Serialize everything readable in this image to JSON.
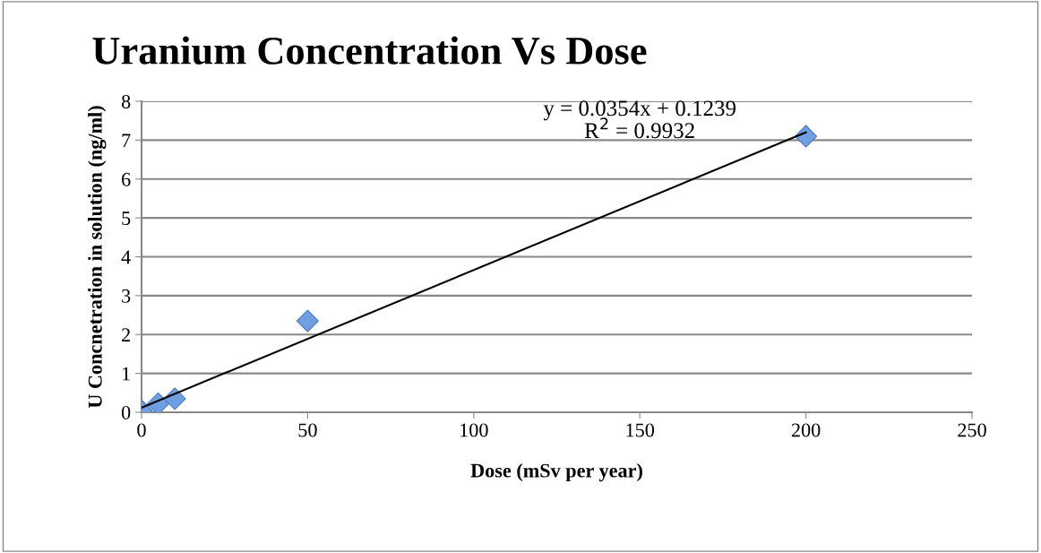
{
  "chart_data": {
    "type": "scatter",
    "title": "Uranium Concentration Vs Dose",
    "xlabel": "Dose (mSv per year)",
    "ylabel": "U Concnetration in solution (ng/ml)",
    "xlim": [
      0,
      250
    ],
    "xticks": [
      0,
      50,
      100,
      150,
      200,
      250
    ],
    "ylim": [
      0,
      8
    ],
    "yticks": [
      0,
      1,
      2,
      3,
      4,
      5,
      6,
      7,
      8
    ],
    "grid": "y",
    "legend": false,
    "series": [
      {
        "color": "#6f9fe0",
        "marker": "diamond",
        "x": [
          0,
          5,
          10,
          50,
          200
        ],
        "values": [
          0.04,
          0.22,
          0.35,
          2.35,
          7.1
        ]
      },
      {
        "type": "line",
        "color": "#000000",
        "marker": "none",
        "line_style": "solid",
        "x": [
          0,
          200
        ],
        "values": [
          0.12,
          7.2
        ]
      }
    ],
    "annotations": [
      "y = 0.0354x + 0.1239\nR$^{2}$ = 0.9932"
    ]
  }
}
